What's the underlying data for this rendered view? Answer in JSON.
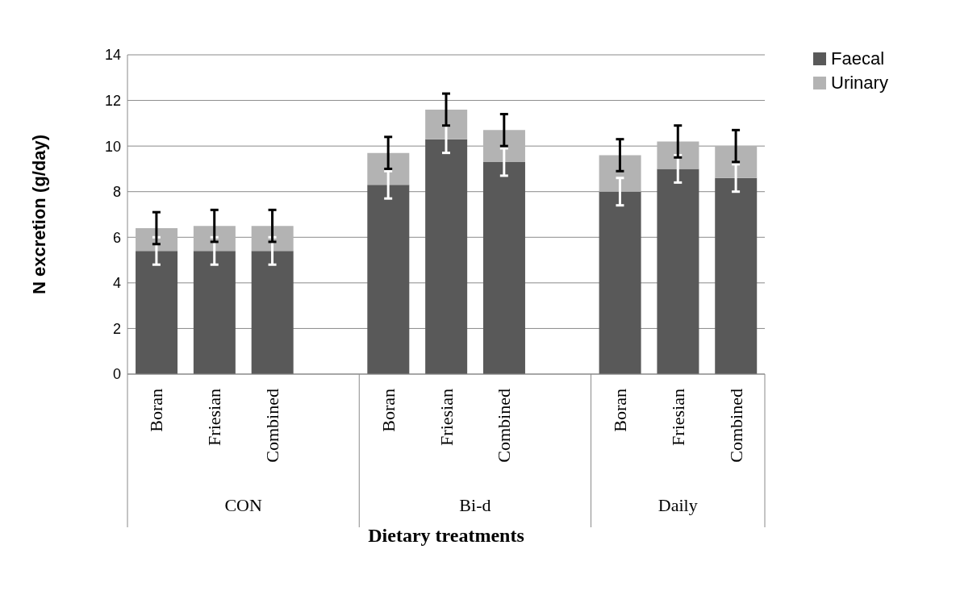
{
  "chart_data": {
    "type": "bar",
    "stacked": true,
    "xlabel": "Dietary treatments",
    "ylabel": "N excretion (g/day)",
    "categories": [
      "Boran",
      "Friesian",
      "Combined",
      null,
      "Boran",
      "Friesian",
      "Combined",
      null,
      "Boran",
      "Friesian",
      "Combined"
    ],
    "series": [
      {
        "name": "Faecal",
        "color": "#595959",
        "values": [
          5.4,
          5.4,
          5.4,
          null,
          8.3,
          10.3,
          9.3,
          null,
          8.0,
          9.0,
          8.6
        ],
        "errors": [
          0.6,
          0.6,
          0.6,
          null,
          0.6,
          0.6,
          0.6,
          null,
          0.6,
          0.6,
          0.6
        ]
      },
      {
        "name": "Urinary",
        "color": "#b3b3b3",
        "values": [
          1.0,
          1.1,
          1.1,
          null,
          1.4,
          1.3,
          1.4,
          null,
          1.6,
          1.2,
          1.4
        ],
        "errors": [
          0.7,
          0.7,
          0.7,
          null,
          0.7,
          0.7,
          0.7,
          null,
          0.7,
          0.7,
          0.7
        ]
      }
    ],
    "annotations": [
      "CON",
      "Bi-d",
      "Daily"
    ],
    "ylim": [
      0,
      14
    ],
    "yticks": [
      0,
      2,
      4,
      6,
      8,
      10,
      12,
      14
    ],
    "grid": "y",
    "legend": "top right"
  }
}
